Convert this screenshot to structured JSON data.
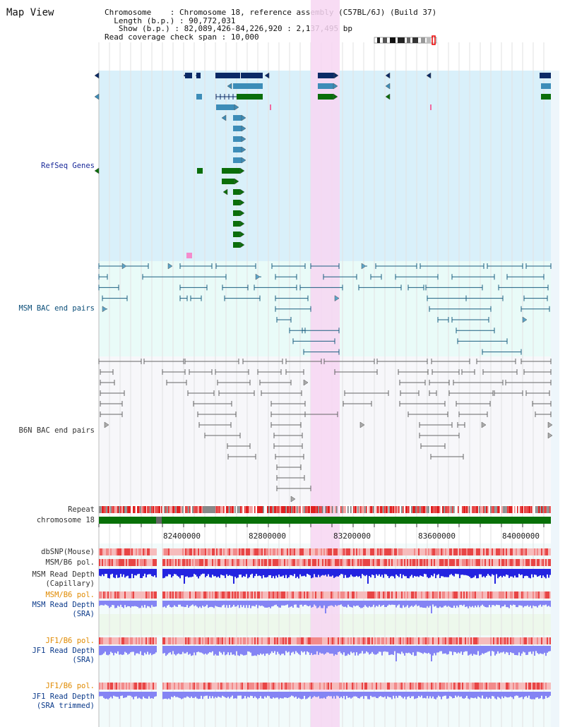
{
  "app": {
    "title": "Map View"
  },
  "info": {
    "chromosome_label": "Chromosome",
    "chromosome_value": "Chromosome 18, reference assembly (C57BL/6J) (Build 37)",
    "length_label": "Length (b.p.)",
    "length_value": "90,772,031",
    "show_label": "Show (b.p.)",
    "show_value": "82,089,426-84,226,920 : 2,137,495 bp",
    "coverage_label": "Read coverage check span",
    "coverage_value": "10,000"
  },
  "view": {
    "start": 82089426,
    "end": 84226920,
    "highlight_start": 83090000,
    "highlight_end": 83230000
  },
  "tracks": {
    "refseq": "RefSeq Genes",
    "msm_bac": "MSM BAC end pairs",
    "b6n_bac": "B6N BAC end pairs",
    "repeat": "Repeat",
    "chrom": "chromosome 18",
    "dbsnp": "dbSNP(Mouse)",
    "msm_b6_pol": "MSM/B6 pol.",
    "msm_rd_cap_1": "MSM Read Depth",
    "msm_rd_cap_2": "(Capillary)",
    "msm_b6_pol2": "MSM/B6 pol.",
    "msm_rd_sra_1": "MSM Read Depth",
    "msm_rd_sra_2": "(SRA)",
    "jf1_b6_pol": "JF1/B6 pol.",
    "jf1_rd_sra_1": "JF1 Read Depth",
    "jf1_rd_sra_2": "(SRA)",
    "jf1_b6_pol2": "JF1/B6 pol.",
    "jf1_rd_trim_1": "JF1 Read Depth",
    "jf1_rd_trim_2": "(SRA trimmed)"
  },
  "axis": {
    "ticks": [
      "82400000",
      "82800000",
      "83200000",
      "83600000",
      "84000000"
    ]
  },
  "colors": {
    "refseq_bg": "#d9f0fa",
    "msm_bg": "#e9fbf8",
    "highlight": "#f7d6f2",
    "gene_dark": "#0b2a66",
    "gene_mid": "#3d8db8",
    "gene_green": "#0a6e0a",
    "chrom_green": "#087008",
    "snp_red": "#e84545",
    "depth_blue": "#2323e0",
    "depth_light": "#8484f4"
  }
}
